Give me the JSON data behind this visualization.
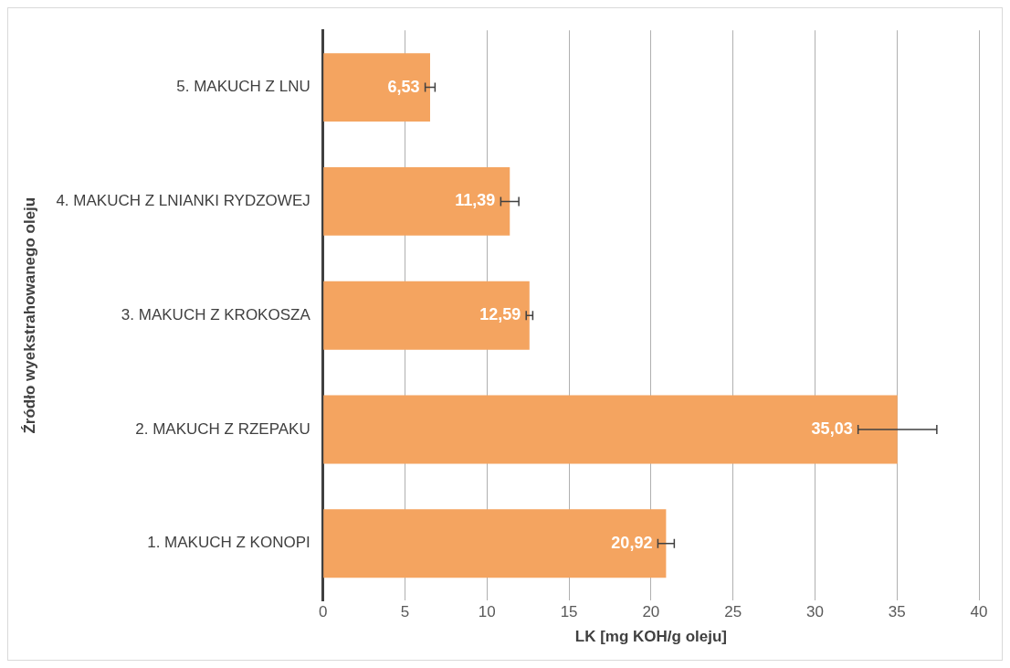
{
  "chart_data": {
    "type": "bar",
    "orientation": "horizontal",
    "xlabel": "LK [mg KOH/g oleju]",
    "ylabel": "Źródło wyekstrahowanego oleju",
    "categories": [
      "5. MAKUCH Z LNU",
      "4. MAKUCH Z LNIANKI RYDZOWEJ",
      "3. MAKUCH Z KROKOSZA",
      "2. MAKUCH Z RZEPAKU",
      "1. MAKUCH Z KONOPI"
    ],
    "values": [
      6.53,
      11.39,
      12.59,
      35.03,
      20.92
    ],
    "errors": [
      0.3,
      0.55,
      0.2,
      2.4,
      0.5
    ],
    "value_labels": [
      "6,53",
      "11,39",
      "12,59",
      "35,03",
      "20,92"
    ],
    "color": "#f4a460",
    "xlim": [
      0,
      40
    ],
    "xticks": [
      0,
      5,
      10,
      15,
      20,
      25,
      30,
      35,
      40
    ],
    "grid": "x",
    "legend": false
  }
}
